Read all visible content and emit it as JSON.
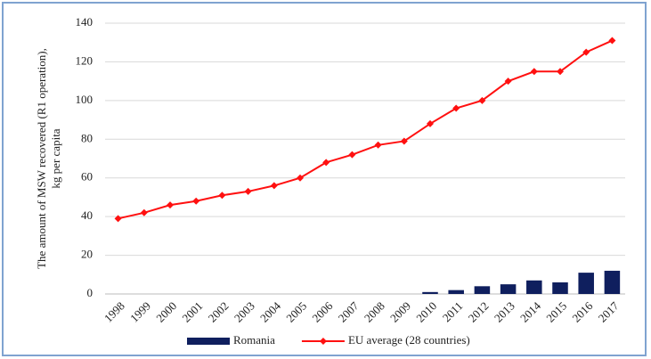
{
  "chart_data": {
    "type": "combo",
    "ylabel": [
      "The amount of MSW recovered (R1 operation),",
      "kg per capita"
    ],
    "categories": [
      "1998",
      "1999",
      "2000",
      "2001",
      "2002",
      "2003",
      "2004",
      "2005",
      "2006",
      "2007",
      "2008",
      "2009",
      "2010",
      "2011",
      "2012",
      "2013",
      "2014",
      "2015",
      "2016",
      "2017"
    ],
    "series": [
      {
        "name": "Romania",
        "type": "bar",
        "color": "#0f1f5e",
        "values": [
          0,
          0,
          0,
          0,
          0,
          0,
          0,
          0,
          0,
          0,
          0,
          0,
          1,
          2,
          4,
          5,
          7,
          6,
          11,
          12
        ]
      },
      {
        "name": "EU average (28 countries)",
        "type": "line",
        "color": "#ff1010",
        "values": [
          39,
          42,
          46,
          48,
          51,
          53,
          56,
          60,
          68,
          72,
          77,
          79,
          88,
          96,
          100,
          110,
          115,
          115,
          125,
          131
        ]
      }
    ],
    "ylim": [
      0,
      140
    ],
    "yticks": [
      0,
      20,
      40,
      60,
      80,
      100,
      120,
      140
    ],
    "grid": true,
    "legend": "bottom"
  }
}
